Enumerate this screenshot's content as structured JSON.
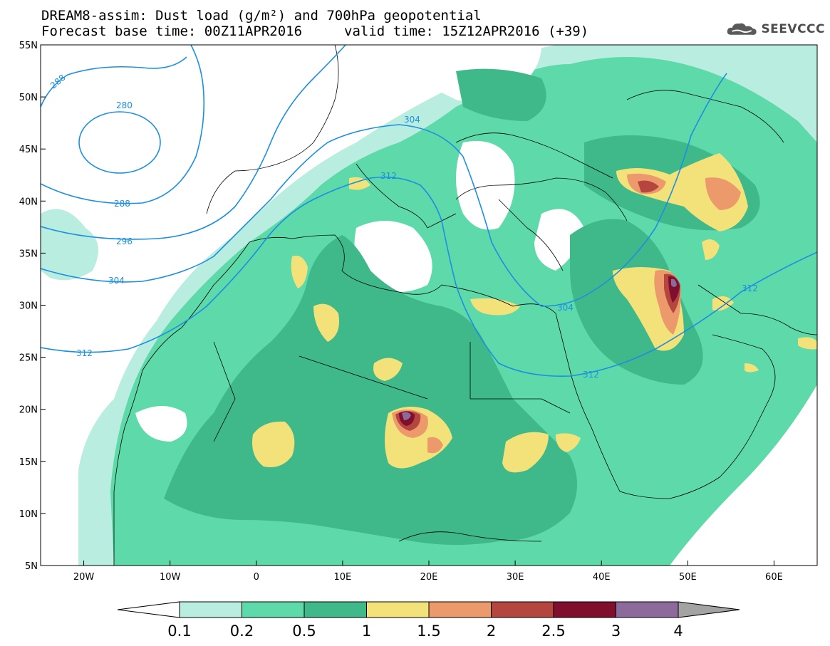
{
  "header": {
    "title_line1": "DREAM8-assim: Dust load (g/m²) and 700hPa geopotential",
    "title_base": "Forecast base time: 00Z11APR2016",
    "title_valid": "valid time: 15Z12APR2016 (+39)"
  },
  "logo": {
    "text": "SEEVCCC",
    "icon": "cloud-icon"
  },
  "axes": {
    "lat_labels": [
      "55N",
      "50N",
      "45N",
      "40N",
      "35N",
      "30N",
      "25N",
      "20N",
      "15N",
      "10N",
      "5N"
    ],
    "lon_labels": [
      "20W",
      "10W",
      "0",
      "10E",
      "20E",
      "30E",
      "40E",
      "50E",
      "60E"
    ],
    "lat_range": [
      5,
      55
    ],
    "lon_range": [
      -25,
      65
    ]
  },
  "geopotential_labels": [
    "288",
    "280",
    "288",
    "296",
    "304",
    "312",
    "304",
    "312",
    "304",
    "312",
    "312"
  ],
  "colorbar": {
    "ticks": [
      "0.1",
      "0.2",
      "0.5",
      "1",
      "1.5",
      "2",
      "2.5",
      "3",
      "4"
    ],
    "colors": [
      "#b8ede0",
      "#5ed9a9",
      "#3fb88a",
      "#f3e27a",
      "#ec9a6b",
      "#b5463f",
      "#7f0f2d",
      "#8c6a9c",
      "#a3a3a3"
    ],
    "under_color": "#ffffff"
  },
  "colors": {
    "contour": "#1c8fe0",
    "coast": "#000000"
  }
}
